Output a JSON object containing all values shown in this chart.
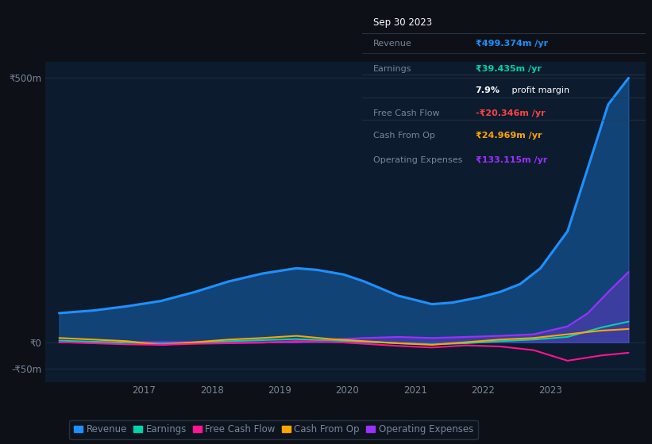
{
  "background_color": "#0d1117",
  "plot_bg_color": "#0d1b2e",
  "grid_color": "#1e2d3d",
  "text_color": "#7a8599",
  "ylim": [
    -75,
    530
  ],
  "xtick_labels": [
    "2017",
    "2018",
    "2019",
    "2020",
    "2021",
    "2022",
    "2023"
  ],
  "xtick_positions": [
    2016.75,
    2017.75,
    2018.75,
    2019.75,
    2020.75,
    2021.75,
    2022.75
  ],
  "series": {
    "Revenue": {
      "color": "#1e90ff",
      "fill": true,
      "fill_alpha": 0.35,
      "linewidth": 2.2,
      "x": [
        2015.5,
        2016.0,
        2016.5,
        2017.0,
        2017.5,
        2018.0,
        2018.5,
        2019.0,
        2019.3,
        2019.7,
        2020.0,
        2020.5,
        2021.0,
        2021.3,
        2021.7,
        2022.0,
        2022.3,
        2022.6,
        2023.0,
        2023.3,
        2023.6,
        2023.9
      ],
      "y": [
        55,
        60,
        68,
        78,
        95,
        115,
        130,
        140,
        137,
        128,
        115,
        88,
        72,
        75,
        85,
        95,
        110,
        140,
        210,
        330,
        450,
        500
      ]
    },
    "Earnings": {
      "color": "#00d4aa",
      "fill": false,
      "linewidth": 1.5,
      "x": [
        2015.5,
        2016.0,
        2016.5,
        2017.0,
        2017.5,
        2018.0,
        2018.5,
        2019.0,
        2019.5,
        2020.0,
        2020.5,
        2021.0,
        2021.5,
        2022.0,
        2022.5,
        2023.0,
        2023.5,
        2023.9
      ],
      "y": [
        3,
        1,
        -1,
        -3,
        -1,
        2,
        4,
        6,
        3,
        1,
        -2,
        -4,
        -2,
        2,
        5,
        10,
        28,
        39
      ]
    },
    "Free Cash Flow": {
      "color": "#ff1493",
      "fill": false,
      "linewidth": 1.5,
      "x": [
        2015.5,
        2016.0,
        2016.5,
        2017.0,
        2017.5,
        2018.0,
        2018.5,
        2019.0,
        2019.5,
        2020.0,
        2020.5,
        2021.0,
        2021.5,
        2022.0,
        2022.5,
        2023.0,
        2023.5,
        2023.9
      ],
      "y": [
        0,
        -2,
        -4,
        -5,
        -3,
        -2,
        -1,
        2,
        1,
        -3,
        -7,
        -10,
        -6,
        -8,
        -15,
        -35,
        -25,
        -20
      ]
    },
    "Cash From Op": {
      "color": "#ffa500",
      "fill": false,
      "linewidth": 1.5,
      "x": [
        2015.5,
        2016.0,
        2016.5,
        2017.0,
        2017.5,
        2018.0,
        2018.5,
        2019.0,
        2019.5,
        2020.0,
        2020.5,
        2021.0,
        2021.5,
        2022.0,
        2022.5,
        2023.0,
        2023.5,
        2023.9
      ],
      "y": [
        8,
        5,
        2,
        -5,
        0,
        5,
        8,
        12,
        6,
        2,
        -2,
        -5,
        0,
        5,
        8,
        15,
        22,
        25
      ]
    },
    "Operating Expenses": {
      "color": "#9b30ff",
      "fill": true,
      "fill_alpha": 0.3,
      "linewidth": 1.5,
      "x": [
        2015.5,
        2016.0,
        2016.5,
        2017.0,
        2017.5,
        2018.0,
        2018.5,
        2019.0,
        2019.5,
        2020.0,
        2020.5,
        2021.0,
        2021.5,
        2022.0,
        2022.5,
        2023.0,
        2023.3,
        2023.6,
        2023.9
      ],
      "y": [
        0,
        0,
        0,
        0,
        0,
        0,
        0,
        0,
        5,
        8,
        10,
        8,
        10,
        12,
        15,
        30,
        55,
        95,
        133
      ]
    }
  },
  "tooltip": {
    "date": "Sep 30 2023",
    "bg": "#080e18",
    "border": "#2a3a4a",
    "label_color": "#7a8599",
    "title_color": "#ffffff",
    "rows": [
      {
        "label": "Revenue",
        "value": "₹499.374m /yr",
        "value_color": "#1e90ff"
      },
      {
        "label": "Earnings",
        "value": "₹39.435m /yr",
        "value_color": "#00d4aa"
      },
      {
        "label": "",
        "value": "",
        "value_color": "#ffffff",
        "extra": "7.9% profit margin"
      },
      {
        "label": "Free Cash Flow",
        "value": "-₹20.346m /yr",
        "value_color": "#ff4444"
      },
      {
        "label": "Cash From Op",
        "value": "₹24.969m /yr",
        "value_color": "#ffa500"
      },
      {
        "label": "Operating Expenses",
        "value": "₹133.115m /yr",
        "value_color": "#9b30ff"
      }
    ]
  },
  "legend_items": [
    {
      "label": "Revenue",
      "color": "#1e90ff"
    },
    {
      "label": "Earnings",
      "color": "#00d4aa"
    },
    {
      "label": "Free Cash Flow",
      "color": "#ff1493"
    },
    {
      "label": "Cash From Op",
      "color": "#ffa500"
    },
    {
      "label": "Operating Expenses",
      "color": "#9b30ff"
    }
  ]
}
